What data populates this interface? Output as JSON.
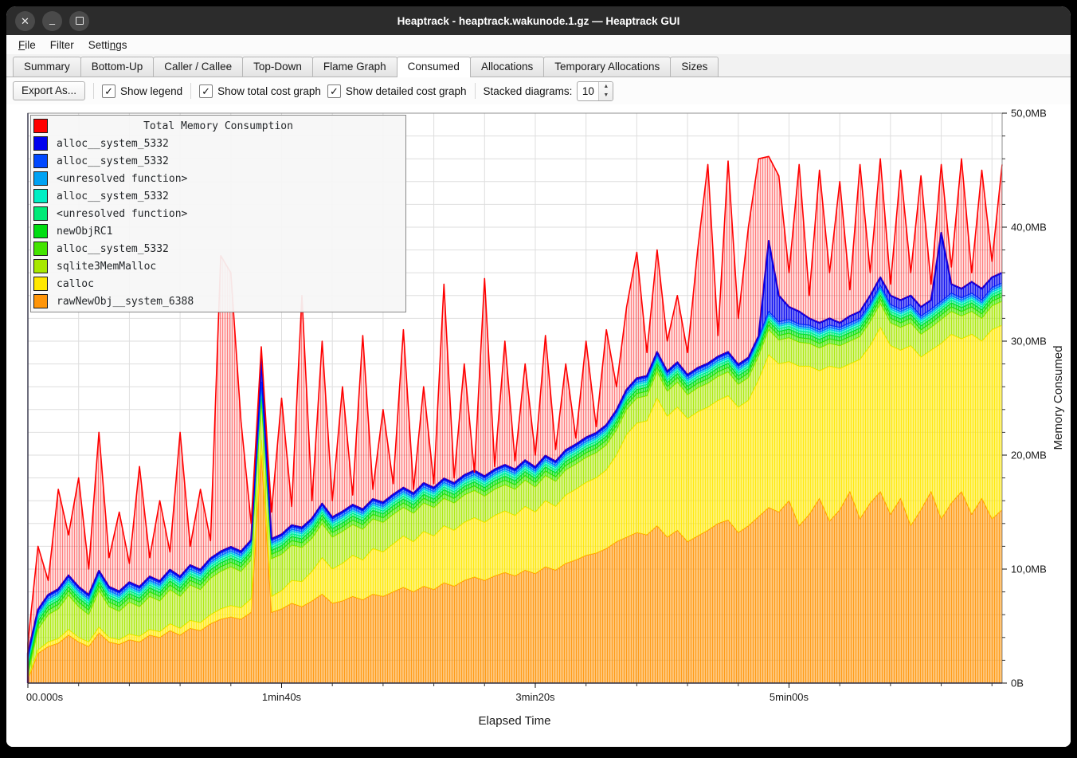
{
  "window": {
    "title": "Heaptrack - heaptrack.wakunode.1.gz — Heaptrack GUI",
    "buttons": [
      {
        "name": "close",
        "glyph": "✕"
      },
      {
        "name": "minimize",
        "glyph": "–"
      },
      {
        "name": "maximize",
        "glyph": "square"
      }
    ]
  },
  "menubar": {
    "items": [
      {
        "label": "File",
        "underline_index": 0
      },
      {
        "label": "Filter",
        "underline_index": -1
      },
      {
        "label": "Settings",
        "underline_index": 5
      }
    ]
  },
  "tabs": {
    "active": "Consumed",
    "items": [
      "Summary",
      "Bottom-Up",
      "Caller / Callee",
      "Top-Down",
      "Flame Graph",
      "Consumed",
      "Allocations",
      "Temporary Allocations",
      "Sizes"
    ]
  },
  "toolbar": {
    "export_label": "Export As...",
    "checkboxes": [
      {
        "label": "Show legend",
        "checked": true
      },
      {
        "label": "Show total cost graph",
        "checked": true
      },
      {
        "label": "Show detailed cost graph",
        "checked": true
      }
    ],
    "stacked_label": "Stacked diagrams:",
    "stacked_value": "10"
  },
  "legend": {
    "title": "Total Memory Consumption",
    "title_color": "#ff0000",
    "items": [
      {
        "label": "alloc__system_5332",
        "color": "#0000ee"
      },
      {
        "label": "alloc__system_5332",
        "color": "#0048ff"
      },
      {
        "label": "<unresolved function>",
        "color": "#00a2f3"
      },
      {
        "label": "alloc__system_5332",
        "color": "#00efc4"
      },
      {
        "label": "<unresolved function>",
        "color": "#00ea78"
      },
      {
        "label": "newObjRC1",
        "color": "#00dd11"
      },
      {
        "label": "alloc__system_5332",
        "color": "#44e400"
      },
      {
        "label": "sqlite3MemMalloc",
        "color": "#a8e800"
      },
      {
        "label": "calloc",
        "color": "#ffe800"
      },
      {
        "label": "rawNewObj__system_6388",
        "color": "#ff9508"
      }
    ]
  },
  "chart_data": {
    "type": "area",
    "title": "Total Memory Consumption",
    "xlabel": "Elapsed Time",
    "ylabel": "Memory Consumed",
    "grid": true,
    "legend_position": "top-left",
    "x_axis": {
      "range_s": [
        0,
        384
      ],
      "ticks": [
        {
          "s": 0,
          "label": "00.000s"
        },
        {
          "s": 100,
          "label": "1min40s"
        },
        {
          "s": 200,
          "label": "3min20s"
        },
        {
          "s": 300,
          "label": "5min00s"
        }
      ],
      "minor_tick_every_s": 20,
      "gridline_every_s": 20
    },
    "y_axis": {
      "range_mb": [
        0,
        50
      ],
      "ticks": [
        {
          "mb": 0,
          "label": "0B"
        },
        {
          "mb": 10,
          "label": "10,0MB"
        },
        {
          "mb": 20,
          "label": "20,0MB"
        },
        {
          "mb": 30,
          "label": "30,0MB"
        },
        {
          "mb": 40,
          "label": "40,0MB"
        },
        {
          "mb": 50,
          "label": "50,0MB"
        }
      ],
      "minor_tick_every_mb": 2,
      "gridline_every_mb": 2
    },
    "sampling": {
      "start_s": 0,
      "step_s": 4,
      "count": 97
    },
    "stacked_series": [
      {
        "name": "rawNewObj__system_6388",
        "color": "#ff9508",
        "values": [
          0.3,
          2.6,
          3.2,
          3.5,
          4.2,
          3.6,
          3.2,
          4.4,
          3.6,
          3.4,
          3.8,
          3.6,
          4.2,
          4.0,
          4.6,
          4.2,
          4.8,
          4.6,
          5.2,
          5.6,
          5.8,
          5.6,
          6.2,
          20.0,
          6.2,
          6.5,
          7.0,
          6.7,
          7.2,
          7.8,
          7.0,
          7.2,
          7.6,
          7.3,
          7.8,
          7.6,
          8.0,
          8.4,
          8.0,
          8.5,
          8.2,
          8.8,
          8.5,
          9.0,
          9.3,
          9.0,
          9.4,
          9.7,
          9.4,
          9.9,
          9.6,
          10.2,
          9.9,
          10.5,
          10.8,
          11.2,
          11.4,
          11.8,
          12.4,
          12.8,
          13.2,
          13.0,
          13.8,
          12.8,
          13.4,
          12.4,
          12.9,
          13.4,
          14.0,
          14.3,
          13.2,
          13.8,
          14.6,
          15.4,
          15.0,
          16.0,
          13.8,
          14.8,
          16.2,
          14.2,
          15.2,
          16.8,
          14.4,
          15.8,
          16.8,
          14.8,
          16.2,
          13.8,
          15.2,
          16.8,
          14.4,
          15.8,
          16.8,
          14.8,
          16.2,
          14.4,
          15.2
        ]
      },
      {
        "name": "calloc",
        "color": "#ffe800",
        "values": [
          0.1,
          0.3,
          0.4,
          0.4,
          0.5,
          0.4,
          0.4,
          0.5,
          0.4,
          0.4,
          0.5,
          0.5,
          0.5,
          0.5,
          0.6,
          0.6,
          0.7,
          0.7,
          0.8,
          0.9,
          1.0,
          1.0,
          1.2,
          1.3,
          1.4,
          1.6,
          2.0,
          2.2,
          2.6,
          3.2,
          3.0,
          3.3,
          3.6,
          3.5,
          4.0,
          3.9,
          4.2,
          4.5,
          4.4,
          4.8,
          4.7,
          5.0,
          4.9,
          5.1,
          5.2,
          5.1,
          5.3,
          5.4,
          5.3,
          5.6,
          5.4,
          5.8,
          5.6,
          6.0,
          6.2,
          6.4,
          6.6,
          6.9,
          7.6,
          9.0,
          9.6,
          10.0,
          11.2,
          10.6,
          10.8,
          10.8,
          10.9,
          10.8,
          10.8,
          10.9,
          11.0,
          11.0,
          12.0,
          13.4,
          13.0,
          12.2,
          14.0,
          13.0,
          11.2,
          13.6,
          12.4,
          11.2,
          14.0,
          13.8,
          14.4,
          14.8,
          13.0,
          15.8,
          13.4,
          12.4,
          15.4,
          14.8,
          13.4,
          15.8,
          13.8,
          16.6,
          16.2
        ]
      },
      {
        "name": "sqlite3MemMalloc",
        "color": "#a8e800",
        "values": [
          0.2,
          1.8,
          2.4,
          2.6,
          3.0,
          2.7,
          2.4,
          3.2,
          2.7,
          2.5,
          2.8,
          2.6,
          2.9,
          2.7,
          3.0,
          2.8,
          3.1,
          2.9,
          3.2,
          3.3,
          3.4,
          3.2,
          3.4,
          3.5,
          3.3,
          3.2,
          3.1,
          3.0,
          2.9,
          3.0,
          2.8,
          2.8,
          2.7,
          2.7,
          2.6,
          2.6,
          2.6,
          2.5,
          2.5,
          2.5,
          2.5,
          2.4,
          2.4,
          2.4,
          2.4,
          2.3,
          2.3,
          2.3,
          2.3,
          2.3,
          2.2,
          2.2,
          2.2,
          2.2,
          2.2,
          2.2,
          2.2,
          2.2,
          2.2,
          2.2,
          2.2,
          2.2,
          2.3,
          2.2,
          2.2,
          2.1,
          2.1,
          2.1,
          2.1,
          2.1,
          2.0,
          2.0,
          2.1,
          2.2,
          2.1,
          2.1,
          2.1,
          2.0,
          2.0,
          2.0,
          2.0,
          2.0,
          2.0,
          2.1,
          2.1,
          2.0,
          2.0,
          2.0,
          2.0,
          2.0,
          2.1,
          2.0,
          2.0,
          2.0,
          2.0,
          2.1,
          2.1
        ]
      },
      {
        "name": "alloc__system_5332",
        "color": "#44e400",
        "constant": 0.4
      },
      {
        "name": "newObjRC1",
        "color": "#00dd11",
        "constant": 0.35
      },
      {
        "name": "<unresolved function>",
        "color": "#00ea78",
        "constant": 0.25
      },
      {
        "name": "alloc__system_5332",
        "color": "#00efc4",
        "constant": 0.2
      },
      {
        "name": "<unresolved function>",
        "color": "#00a2f3",
        "constant": 0.18
      },
      {
        "name": "alloc__system_5332",
        "color": "#0048ff",
        "constant": 0.22
      },
      {
        "name": "alloc__system_5332",
        "color": "#0000ee",
        "values_from": "stack_top_residual",
        "min_mb": 0.15
      }
    ],
    "stack_top_mb": [
      2.6,
      6.0,
      7.0,
      7.5,
      9.0,
      8.0,
      7.2,
      9.5,
      8.0,
      7.5,
      8.5,
      8.0,
      9.0,
      8.5,
      9.5,
      9.0,
      10.0,
      9.5,
      10.5,
      11.0,
      11.5,
      11.0,
      12.0,
      28.5,
      12.5,
      13.0,
      13.8,
      13.2,
      14.2,
      15.2,
      13.8,
      14.2,
      14.8,
      14.4,
      15.4,
      15.0,
      15.6,
      16.2,
      15.8,
      16.6,
      16.2,
      17.0,
      16.6,
      17.2,
      17.6,
      17.2,
      17.8,
      18.2,
      17.8,
      18.6,
      18.2,
      19.0,
      18.6,
      19.6,
      20.0,
      20.6,
      21.0,
      21.6,
      23.0,
      25.0,
      26.0,
      26.6,
      28.6,
      27.0,
      27.6,
      26.6,
      27.2,
      27.6,
      28.2,
      28.6,
      27.6,
      28.2,
      30.0,
      38.8,
      34.0,
      33.0,
      32.6,
      32.0,
      31.6,
      32.0,
      31.6,
      32.2,
      32.6,
      34.0,
      35.6,
      34.0,
      33.6,
      34.0,
      33.0,
      33.6,
      39.5,
      35.0,
      34.6,
      35.2,
      34.6,
      35.6,
      36.0
    ],
    "total_series": {
      "name": "Total Memory Consumption",
      "color": "#ff0000",
      "values": [
        3.5,
        12.0,
        9.0,
        17.0,
        13.0,
        18.0,
        10.0,
        22.0,
        11.0,
        15.0,
        10.5,
        19.0,
        11.0,
        16.0,
        11.5,
        22.0,
        12.0,
        17.0,
        12.5,
        37.5,
        36.0,
        23.0,
        14.0,
        29.5,
        15.0,
        25.0,
        15.5,
        34.0,
        16.0,
        30.0,
        16.0,
        26.0,
        16.5,
        30.5,
        17.0,
        24.0,
        17.5,
        31.0,
        17.0,
        26.0,
        17.5,
        35.0,
        18.0,
        28.0,
        18.5,
        35.5,
        19.0,
        30.0,
        19.5,
        28.0,
        20.0,
        30.5,
        20.5,
        28.0,
        21.5,
        30.0,
        22.5,
        31.0,
        26.0,
        33.0,
        37.8,
        29.0,
        38.0,
        30.0,
        34.0,
        29.0,
        38.0,
        45.5,
        30.5,
        45.8,
        32.0,
        40.0,
        46.0,
        46.2,
        44.5,
        36.0,
        45.5,
        34.0,
        45.0,
        36.0,
        44.0,
        34.5,
        45.5,
        36.0,
        46.0,
        35.0,
        45.0,
        36.0,
        44.5,
        35.0,
        45.5,
        36.5,
        46.0,
        36.0,
        45.0,
        37.0,
        45.5
      ]
    }
  }
}
